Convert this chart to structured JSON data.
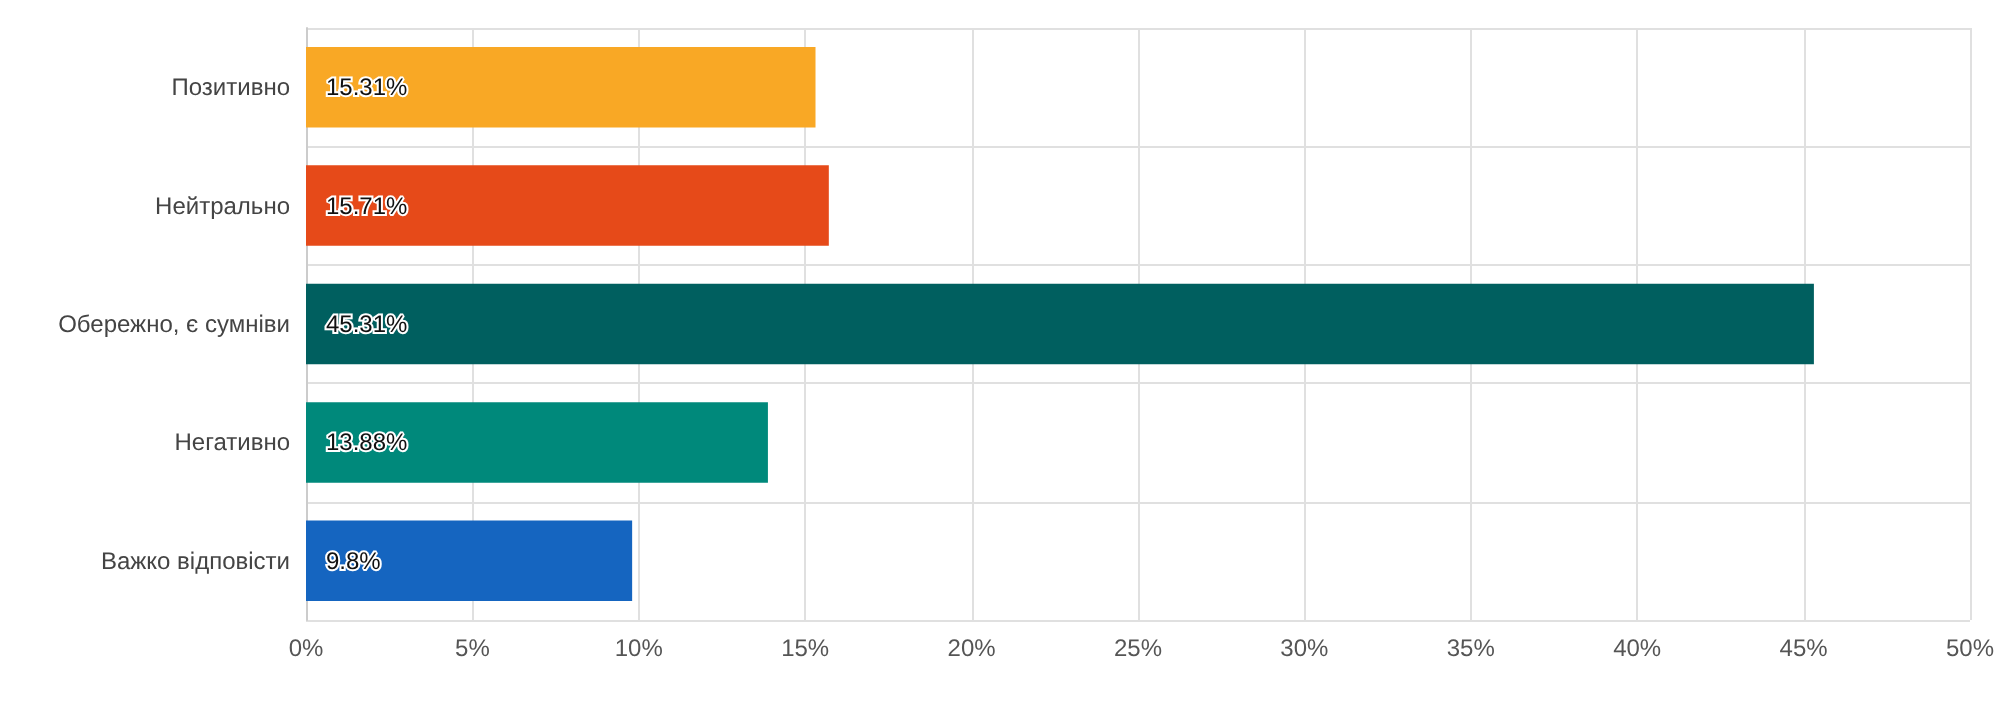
{
  "chart_data": {
    "type": "bar",
    "orientation": "horizontal",
    "categories": [
      "Позитивно",
      "Нейтрально",
      "Обережно, є сумніви",
      "Негативно",
      "Важко відповісти"
    ],
    "values": [
      15.31,
      15.71,
      45.31,
      13.88,
      9.8
    ],
    "colors": [
      "#f9a825",
      "#e64a19",
      "#005f5f",
      "#00897b",
      "#1565c0"
    ],
    "value_labels": [
      "15.31%",
      "15.71%",
      "45.31%",
      "13.88%",
      "9.8%"
    ],
    "xlim": [
      0,
      50
    ],
    "xticks": [
      {
        "value": 0,
        "label": "0%"
      },
      {
        "value": 5,
        "label": "5%"
      },
      {
        "value": 10,
        "label": "10%"
      },
      {
        "value": 15,
        "label": "15%"
      },
      {
        "value": 20,
        "label": "20%"
      },
      {
        "value": 25,
        "label": "25%"
      },
      {
        "value": 30,
        "label": "30%"
      },
      {
        "value": 35,
        "label": "35%"
      },
      {
        "value": 40,
        "label": "40%"
      },
      {
        "value": 45,
        "label": "45%"
      },
      {
        "value": 50,
        "label": "50%"
      }
    ],
    "grid": true
  }
}
